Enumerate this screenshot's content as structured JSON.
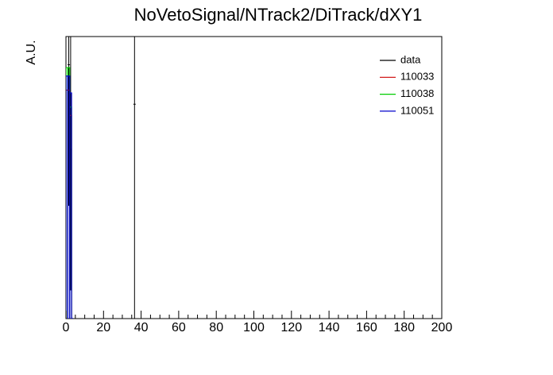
{
  "chart_data": {
    "type": "histogram",
    "title": "NoVetoSignal/NTrack2/DiTrack/dXY1",
    "y_label": "A.U.",
    "xlim": [
      0,
      200
    ],
    "ylim": [
      0,
      1
    ],
    "xticks": [
      0,
      20,
      40,
      60,
      80,
      100,
      120,
      140,
      160,
      180,
      200
    ],
    "xminorticks": [
      5,
      10,
      15,
      25,
      30,
      35,
      45,
      50,
      55,
      65,
      70,
      75,
      85,
      90,
      95,
      105,
      110,
      115,
      125,
      130,
      135,
      145,
      150,
      155,
      165,
      170,
      175,
      185,
      190,
      195
    ],
    "bins": [
      0,
      1,
      2,
      3,
      4
    ],
    "series": [
      {
        "name": "data",
        "color": "#000000",
        "x": [
          1.5,
          2.5,
          36.5
        ],
        "values": [
          0.9,
          0.6,
          0.76
        ],
        "errors": [
          0.5,
          0.5,
          0.9
        ]
      },
      {
        "name": "110033",
        "color": "#cc0000",
        "values": [
          0.81,
          0.81,
          0.72,
          0
        ]
      },
      {
        "name": "110038",
        "color": "#00cc00",
        "values": [
          0.89,
          0.89,
          0.75,
          0
        ]
      },
      {
        "name": "110051",
        "color": "#0000cc",
        "values": [
          0.86,
          0.86,
          0.8,
          0
        ]
      }
    ]
  }
}
